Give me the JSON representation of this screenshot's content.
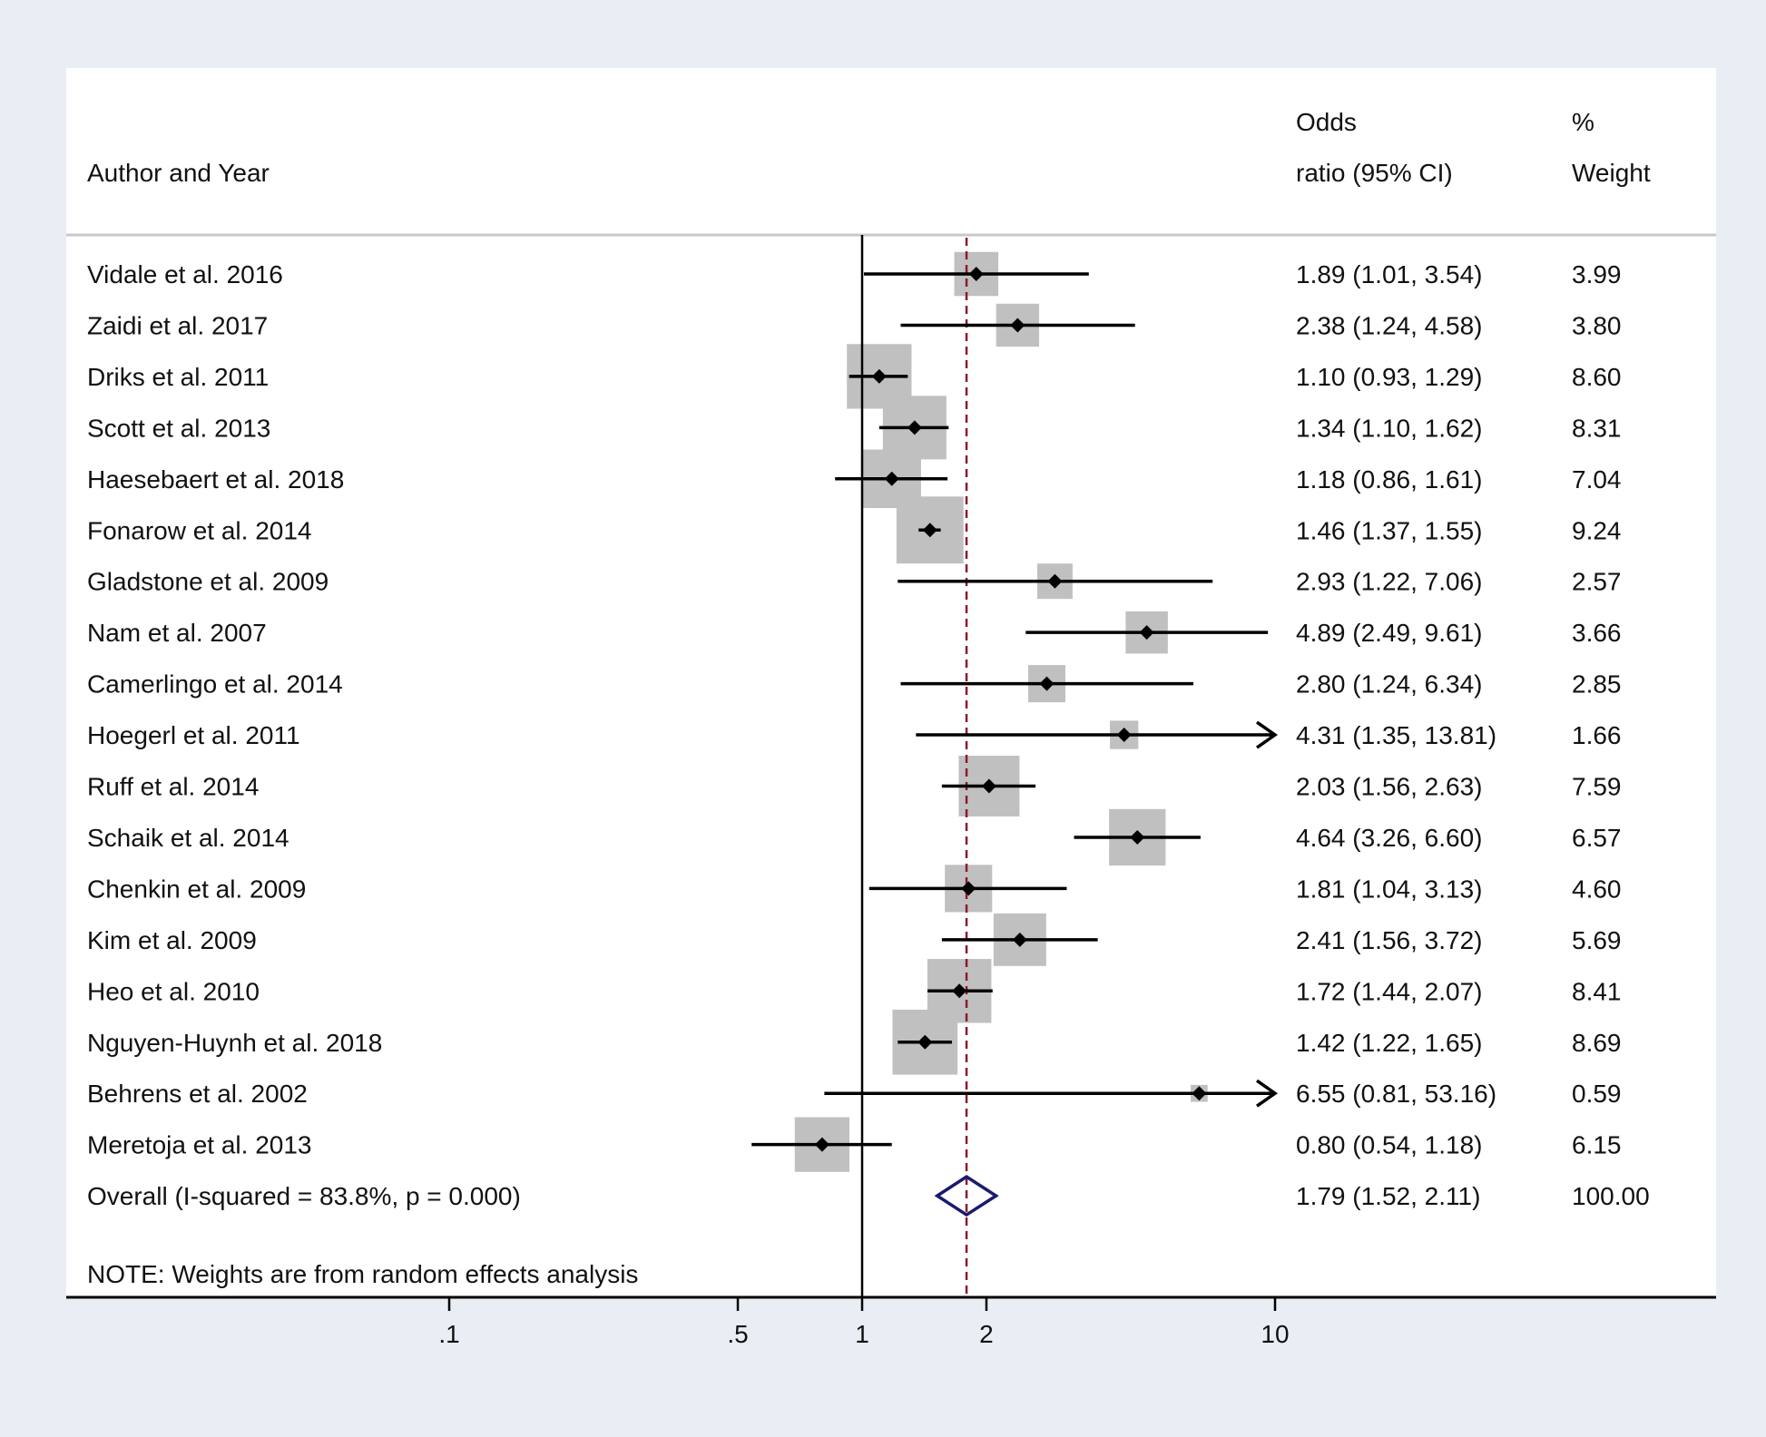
{
  "chart_data": {
    "type": "forest",
    "measure": "Odds ratio",
    "x_scale": "log",
    "xlim": [
      0.1,
      10
    ],
    "xticks": [
      {
        "value": 0.1,
        "label": ".1"
      },
      {
        "value": 0.5,
        "label": ".5"
      },
      {
        "value": 1,
        "label": "1"
      },
      {
        "value": 2,
        "label": "2"
      },
      {
        "value": 10,
        "label": "10"
      }
    ],
    "null_line": 1,
    "overall_line": 1.79,
    "headers": {
      "study": "Author and Year",
      "effect_line1": "Odds",
      "effect_line2": "ratio (95% CI)",
      "weight_line1": "%",
      "weight_line2": "Weight"
    },
    "studies": [
      {
        "label": "Vidale et al. 2016",
        "or": 1.89,
        "lower": 1.01,
        "upper": 3.54,
        "ci_text": "1.89 (1.01, 3.54)",
        "weight": 3.99,
        "weight_text": "3.99"
      },
      {
        "label": "Zaidi et al. 2017",
        "or": 2.38,
        "lower": 1.24,
        "upper": 4.58,
        "ci_text": "2.38 (1.24, 4.58)",
        "weight": 3.8,
        "weight_text": "3.80"
      },
      {
        "label": "Driks et al. 2011",
        "or": 1.1,
        "lower": 0.93,
        "upper": 1.29,
        "ci_text": "1.10 (0.93, 1.29)",
        "weight": 8.6,
        "weight_text": "8.60"
      },
      {
        "label": "Scott et al. 2013",
        "or": 1.34,
        "lower": 1.1,
        "upper": 1.62,
        "ci_text": "1.34 (1.10, 1.62)",
        "weight": 8.31,
        "weight_text": "8.31"
      },
      {
        "label": "Haesebaert et al. 2018",
        "or": 1.18,
        "lower": 0.86,
        "upper": 1.61,
        "ci_text": "1.18 (0.86, 1.61)",
        "weight": 7.04,
        "weight_text": "7.04"
      },
      {
        "label": "Fonarow et al. 2014",
        "or": 1.46,
        "lower": 1.37,
        "upper": 1.55,
        "ci_text": "1.46 (1.37, 1.55)",
        "weight": 9.24,
        "weight_text": "9.24"
      },
      {
        "label": "Gladstone et al. 2009",
        "or": 2.93,
        "lower": 1.22,
        "upper": 7.06,
        "ci_text": "2.93 (1.22, 7.06)",
        "weight": 2.57,
        "weight_text": "2.57"
      },
      {
        "label": "Nam et al. 2007",
        "or": 4.89,
        "lower": 2.49,
        "upper": 9.61,
        "ci_text": "4.89 (2.49, 9.61)",
        "weight": 3.66,
        "weight_text": "3.66"
      },
      {
        "label": "Camerlingo et al. 2014",
        "or": 2.8,
        "lower": 1.24,
        "upper": 6.34,
        "ci_text": "2.80 (1.24, 6.34)",
        "weight": 2.85,
        "weight_text": "2.85"
      },
      {
        "label": "Hoegerl et al. 2011",
        "or": 4.31,
        "lower": 1.35,
        "upper": 13.81,
        "ci_text": "4.31 (1.35, 13.81)",
        "weight": 1.66,
        "weight_text": "1.66"
      },
      {
        "label": "Ruff et al. 2014",
        "or": 2.03,
        "lower": 1.56,
        "upper": 2.63,
        "ci_text": "2.03 (1.56, 2.63)",
        "weight": 7.59,
        "weight_text": "7.59"
      },
      {
        "label": "Schaik et al. 2014",
        "or": 4.64,
        "lower": 3.26,
        "upper": 6.6,
        "ci_text": "4.64 (3.26, 6.60)",
        "weight": 6.57,
        "weight_text": "6.57"
      },
      {
        "label": "Chenkin et al. 2009",
        "or": 1.81,
        "lower": 1.04,
        "upper": 3.13,
        "ci_text": "1.81 (1.04, 3.13)",
        "weight": 4.6,
        "weight_text": "4.60"
      },
      {
        "label": "Kim et al. 2009",
        "or": 2.41,
        "lower": 1.56,
        "upper": 3.72,
        "ci_text": "2.41 (1.56, 3.72)",
        "weight": 5.69,
        "weight_text": "5.69"
      },
      {
        "label": "Heo et al. 2010",
        "or": 1.72,
        "lower": 1.44,
        "upper": 2.07,
        "ci_text": "1.72 (1.44, 2.07)",
        "weight": 8.41,
        "weight_text": "8.41"
      },
      {
        "label": "Nguyen-Huynh et al. 2018",
        "or": 1.42,
        "lower": 1.22,
        "upper": 1.65,
        "ci_text": "1.42 (1.22, 1.65)",
        "weight": 8.69,
        "weight_text": "8.69"
      },
      {
        "label": "Behrens et al. 2002",
        "or": 6.55,
        "lower": 0.81,
        "upper": 53.16,
        "ci_text": "6.55 (0.81, 53.16)",
        "weight": 0.59,
        "weight_text": "0.59"
      },
      {
        "label": "Meretoja et al. 2013",
        "or": 0.8,
        "lower": 0.54,
        "upper": 1.18,
        "ci_text": "0.80 (0.54, 1.18)",
        "weight": 6.15,
        "weight_text": "6.15"
      }
    ],
    "overall": {
      "label": "Overall  (I-squared = 83.8%, p = 0.000)",
      "or": 1.79,
      "lower": 1.52,
      "upper": 2.11,
      "ci_text": "1.79 (1.52, 2.11)",
      "weight_text": "100.00"
    },
    "note": "NOTE: Weights are from random effects analysis"
  },
  "colors": {
    "background": "#e8eef4",
    "panel": "#ffffff",
    "weight_box": "#c0c0c0",
    "marker": "#000000",
    "overall_diamond": "#1a1a6e",
    "overall_line": "#8b1a2b",
    "header_rule": "#c8c8c8"
  }
}
